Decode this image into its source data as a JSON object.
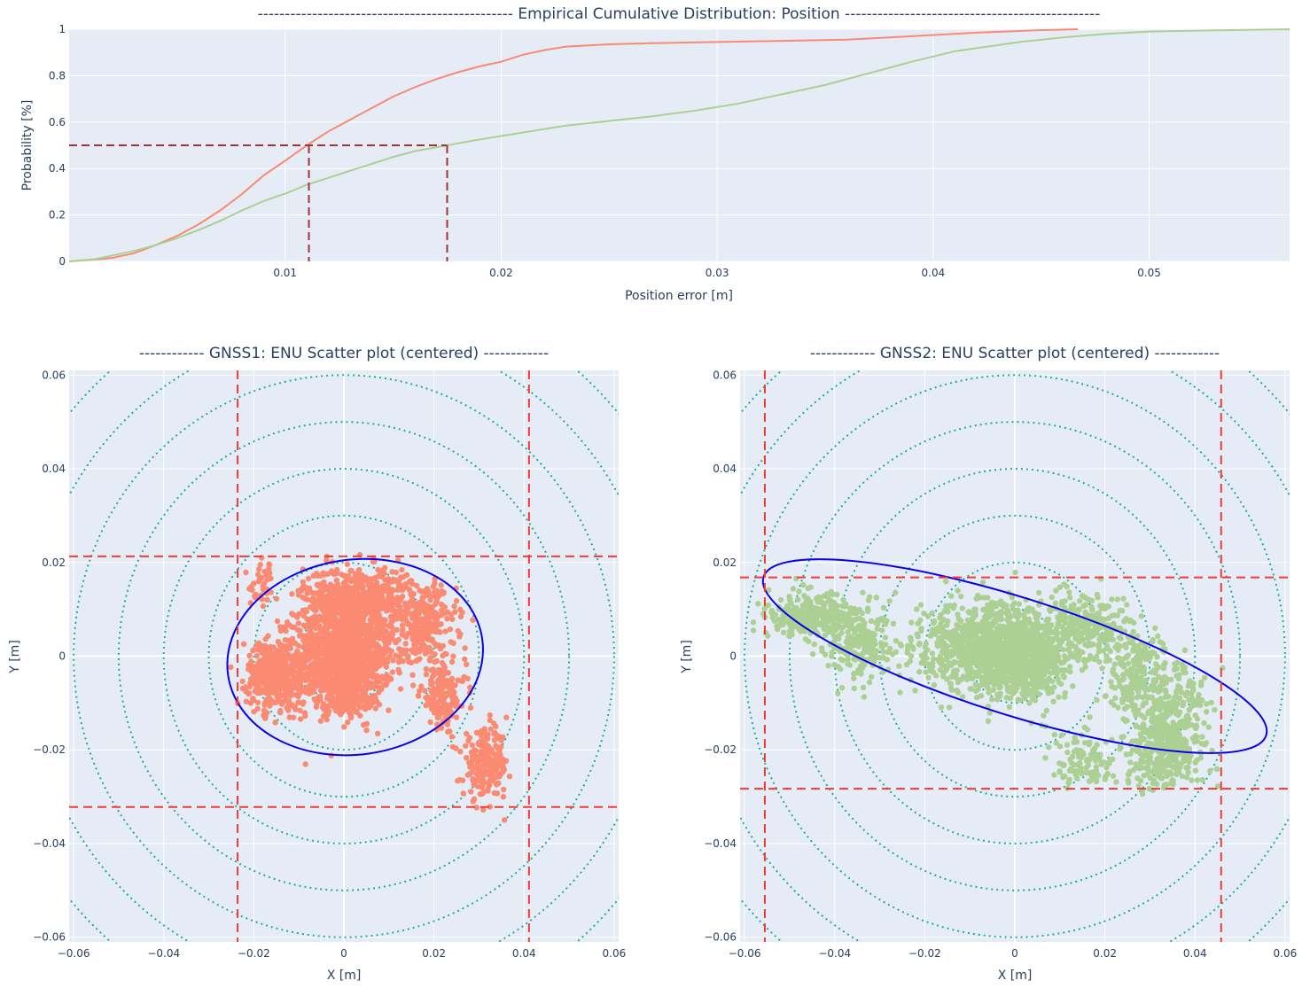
{
  "chart_data": [
    {
      "type": "line",
      "title": "-----------------------------------------------  Empirical Cumulative Distribution: Position  -----------------------------------------------",
      "xlabel": "Position error [m]",
      "ylabel": "Probability [%]",
      "xlim": [
        0,
        0.0565
      ],
      "ylim": [
        0,
        1.0
      ],
      "grid": true,
      "legend": "none",
      "x_ticks": [
        {
          "value": 0.01,
          "label": "0.01"
        },
        {
          "value": 0.02,
          "label": "0.02"
        },
        {
          "value": 0.03,
          "label": "0.03"
        },
        {
          "value": 0.04,
          "label": "0.04"
        },
        {
          "value": 0.05,
          "label": "0.05"
        }
      ],
      "y_ticks": [
        {
          "value": 0,
          "label": "0"
        },
        {
          "value": 0.2,
          "label": "0.2"
        },
        {
          "value": 0.4,
          "label": "0.4"
        },
        {
          "value": 0.6,
          "label": "0.6"
        },
        {
          "value": 0.8,
          "label": "0.8"
        },
        {
          "value": 1,
          "label": "1"
        }
      ],
      "series": [
        {
          "name": "GNSS1",
          "color": "#fa8a72",
          "x": [
            0,
            0.0012,
            0.002,
            0.003,
            0.004,
            0.005,
            0.006,
            0.007,
            0.008,
            0.009,
            0.0101,
            0.011,
            0.012,
            0.013,
            0.014,
            0.015,
            0.016,
            0.017,
            0.018,
            0.019,
            0.02,
            0.021,
            0.022,
            0.023,
            0.025,
            0.027,
            0.03,
            0.033,
            0.036,
            0.039,
            0.042,
            0.0447,
            0.0467
          ],
          "values": [
            0,
            0.008,
            0.015,
            0.035,
            0.07,
            0.11,
            0.16,
            0.22,
            0.29,
            0.37,
            0.44,
            0.5,
            0.56,
            0.61,
            0.66,
            0.71,
            0.75,
            0.785,
            0.815,
            0.84,
            0.86,
            0.89,
            0.91,
            0.925,
            0.935,
            0.94,
            0.945,
            0.95,
            0.955,
            0.97,
            0.985,
            0.995,
            1.0
          ]
        },
        {
          "name": "GNSS2",
          "color": "#acd094",
          "x": [
            0,
            0.0012,
            0.002,
            0.003,
            0.004,
            0.005,
            0.006,
            0.007,
            0.008,
            0.009,
            0.0101,
            0.011,
            0.012,
            0.013,
            0.014,
            0.015,
            0.016,
            0.0175,
            0.019,
            0.021,
            0.023,
            0.025,
            0.027,
            0.029,
            0.031,
            0.033,
            0.035,
            0.037,
            0.039,
            0.041,
            0.0425,
            0.044,
            0.046,
            0.048,
            0.05,
            0.053,
            0.0565
          ],
          "values": [
            0,
            0.01,
            0.025,
            0.045,
            0.07,
            0.1,
            0.135,
            0.175,
            0.22,
            0.26,
            0.295,
            0.33,
            0.36,
            0.39,
            0.42,
            0.45,
            0.475,
            0.5,
            0.525,
            0.555,
            0.585,
            0.605,
            0.625,
            0.65,
            0.68,
            0.72,
            0.76,
            0.81,
            0.86,
            0.905,
            0.925,
            0.945,
            0.965,
            0.98,
            0.99,
            0.995,
            1.0
          ]
        }
      ],
      "reference_lines": [
        {
          "level": 0.5,
          "x": 0.0111,
          "color": "#a83232"
        },
        {
          "level": 0.5,
          "x": 0.0175,
          "color": "#a83232"
        }
      ]
    },
    {
      "type": "scatter",
      "title": "------------ GNSS1: ENU Scatter plot (centered) ------------",
      "xlabel": "X [m]",
      "ylabel": "Y [m]",
      "xlim": [
        -0.061,
        0.061
      ],
      "ylim": [
        -0.061,
        0.061
      ],
      "grid": true,
      "legend": "none",
      "ticks": [
        {
          "value": -0.06,
          "label": "−0.06"
        },
        {
          "value": -0.04,
          "label": "−0.04"
        },
        {
          "value": -0.02,
          "label": "−0.02"
        },
        {
          "value": 0,
          "label": "0"
        },
        {
          "value": 0.02,
          "label": "0.02"
        },
        {
          "value": 0.04,
          "label": "0.04"
        },
        {
          "value": 0.06,
          "label": "0.06"
        }
      ],
      "point_color": "#fa8a72",
      "circle_color": "#1cae97",
      "circle_radii": [
        0.01,
        0.02,
        0.03,
        0.04,
        0.05,
        0.06,
        0.07,
        0.08
      ],
      "ellipse": {
        "cx": 0.0025,
        "cy": -0.0002,
        "a": 0.0285,
        "b": 0.0208,
        "angle_deg": 8,
        "color": "#0c00e6"
      },
      "bounds": {
        "x_min": -0.0236,
        "x_max": 0.0411,
        "y_min": -0.0322,
        "y_max": 0.0213,
        "color": "#f03c32"
      },
      "clusters": [
        {
          "cx": 0.0,
          "cy": 0.0,
          "sx": 0.0055,
          "sy": 0.0055,
          "n": 1400
        },
        {
          "cx": 0.003,
          "cy": 0.013,
          "sx": 0.006,
          "sy": 0.003,
          "n": 550
        },
        {
          "cx": -0.0155,
          "cy": -0.004,
          "sx": 0.003,
          "sy": 0.0035,
          "n": 450
        },
        {
          "cx": 0.018,
          "cy": 0.007,
          "sx": 0.0035,
          "sy": 0.004,
          "n": 260
        },
        {
          "cx": 0.022,
          "cy": -0.0085,
          "sx": 0.0025,
          "sy": 0.0035,
          "n": 160
        },
        {
          "cx": 0.0315,
          "cy": -0.023,
          "sx": 0.0025,
          "sy": 0.0035,
          "n": 230
        },
        {
          "cx": -0.018,
          "cy": 0.015,
          "sx": 0.0015,
          "sy": 0.0025,
          "n": 40
        },
        {
          "cx": 0.0,
          "cy": -0.01,
          "sx": 0.004,
          "sy": 0.0012,
          "n": 90
        }
      ]
    },
    {
      "type": "scatter",
      "title": "------------ GNSS2: ENU Scatter plot (centered) ------------",
      "xlabel": "X [m]",
      "ylabel": "Y [m]",
      "xlim": [
        -0.061,
        0.061
      ],
      "ylim": [
        -0.061,
        0.061
      ],
      "grid": true,
      "legend": "none",
      "ticks": [
        {
          "value": -0.06,
          "label": "−0.06"
        },
        {
          "value": -0.04,
          "label": "−0.04"
        },
        {
          "value": -0.02,
          "label": "−0.02"
        },
        {
          "value": 0,
          "label": "0"
        },
        {
          "value": 0.02,
          "label": "0.02"
        },
        {
          "value": 0.04,
          "label": "0.04"
        },
        {
          "value": 0.06,
          "label": "0.06"
        }
      ],
      "point_color": "#acd094",
      "circle_color": "#1cae97",
      "circle_radii": [
        0.01,
        0.02,
        0.03,
        0.04,
        0.05,
        0.06,
        0.07,
        0.08
      ],
      "ellipse": {
        "cx": 0.0,
        "cy": 0.0,
        "a": 0.0585,
        "b": 0.0125,
        "angle_deg": -17.5,
        "color": "#0c00e6"
      },
      "bounds": {
        "x_min": -0.0555,
        "x_max": 0.0458,
        "y_min": -0.0283,
        "y_max": 0.0168,
        "color": "#f03c32"
      },
      "clusters": [
        {
          "cx": -0.005,
          "cy": 0.002,
          "sx": 0.008,
          "sy": 0.0045,
          "n": 1100
        },
        {
          "cx": 0.002,
          "cy": -0.002,
          "sx": 0.004,
          "sy": 0.004,
          "n": 350
        },
        {
          "cx": -0.045,
          "cy": 0.009,
          "sx": 0.005,
          "sy": 0.0025,
          "n": 300
        },
        {
          "cx": -0.034,
          "cy": 0.0025,
          "sx": 0.0035,
          "sy": 0.004,
          "n": 220
        },
        {
          "cx": 0.015,
          "cy": 0.006,
          "sx": 0.0045,
          "sy": 0.0035,
          "n": 280
        },
        {
          "cx": 0.027,
          "cy": -0.004,
          "sx": 0.0035,
          "sy": 0.005,
          "n": 220
        },
        {
          "cx": 0.035,
          "cy": -0.012,
          "sx": 0.004,
          "sy": 0.006,
          "n": 260
        },
        {
          "cx": 0.033,
          "cy": -0.021,
          "sx": 0.004,
          "sy": 0.0035,
          "n": 260
        },
        {
          "cx": 0.016,
          "cy": -0.022,
          "sx": 0.004,
          "sy": 0.003,
          "n": 110
        }
      ]
    }
  ]
}
